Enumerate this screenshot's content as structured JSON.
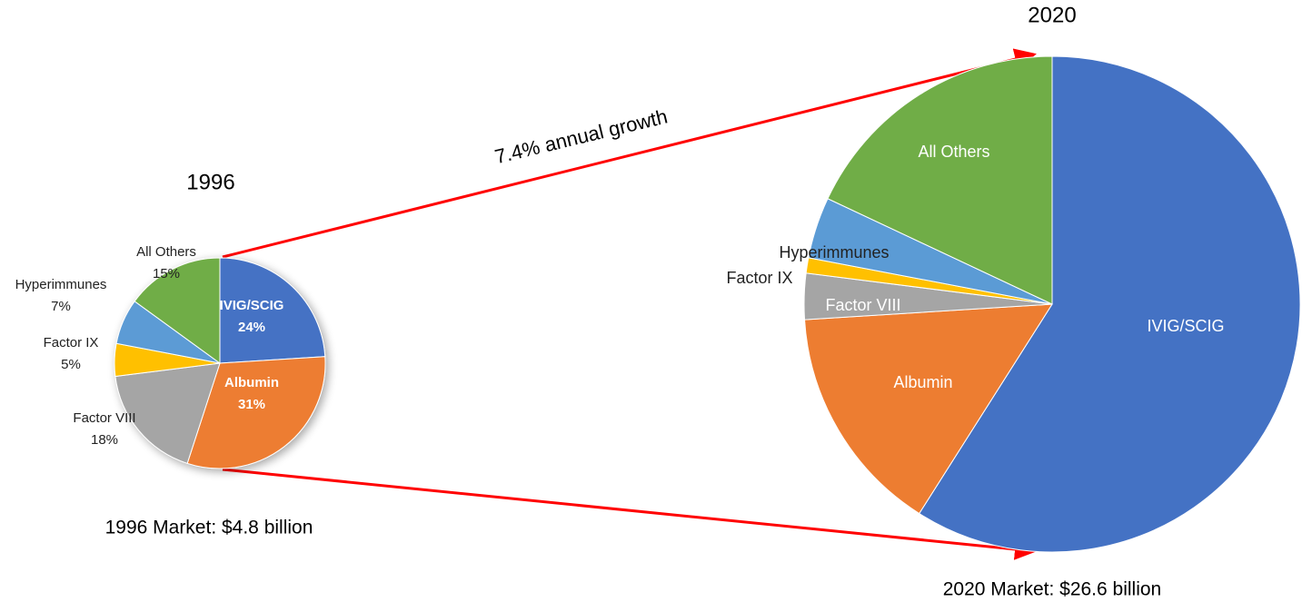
{
  "annotations": [
    "7.4% annual growth"
  ],
  "chart_data": [
    {
      "type": "pie",
      "title": "1996",
      "caption": "1996 Market: $4.8 billion",
      "categories": [
        "IVIG/SCIG",
        "Albumin",
        "Factor VIII",
        "Factor IX",
        "Hyperimmunes",
        "All Others"
      ],
      "values": [
        24,
        31,
        18,
        5,
        7,
        15
      ],
      "value_labels": [
        "24%",
        "31%",
        "18%",
        "5%",
        "7%",
        "15%"
      ],
      "colors": [
        "#4472c4",
        "#ed7d31",
        "#a5a5a5",
        "#ffc000",
        "#5b9bd5",
        "#70ad47"
      ]
    },
    {
      "type": "pie",
      "title": "2020",
      "caption": "2020 Market: $26.6 billion",
      "categories": [
        "IVIG/SCIG",
        "Albumin",
        "Factor VIII",
        "Factor IX",
        "Hyperimmunes",
        "All Others"
      ],
      "values": [
        59,
        15,
        3,
        1,
        4,
        18
      ],
      "colors": [
        "#4472c4",
        "#ed7d31",
        "#a5a5a5",
        "#ffc000",
        "#5b9bd5",
        "#70ad47"
      ]
    }
  ]
}
